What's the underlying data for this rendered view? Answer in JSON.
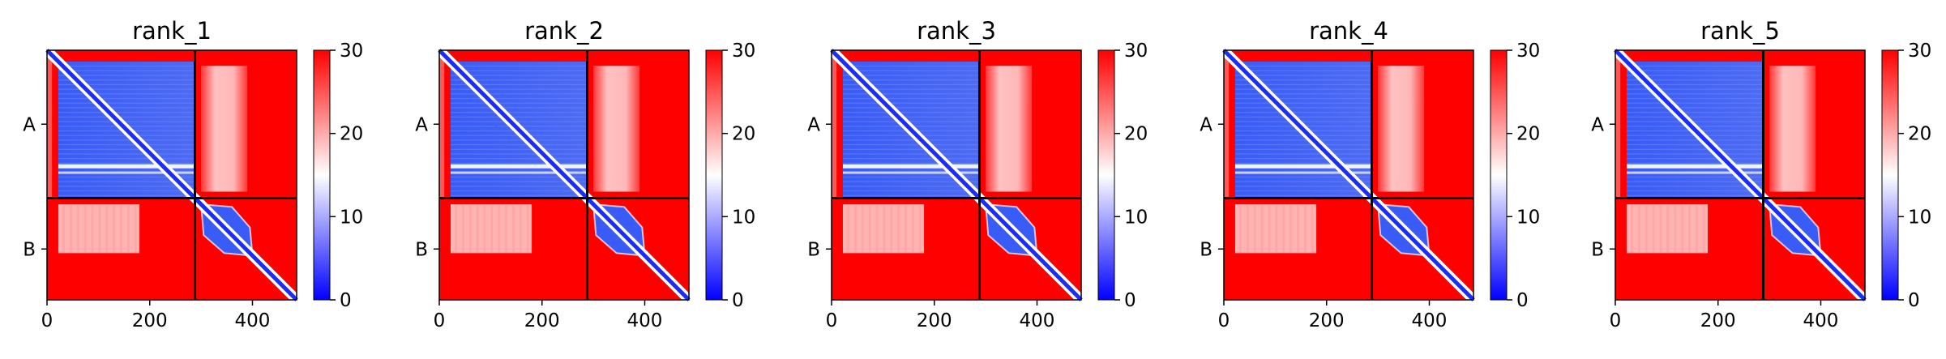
{
  "chart_data": [
    {
      "type": "heatmap",
      "title": "rank_1",
      "x_ticks": [
        0,
        200,
        400
      ],
      "x_range": [
        0,
        486
      ],
      "y_range": [
        0,
        486
      ],
      "chain_boundary": 288,
      "y_tick_labels": [
        "A",
        "B"
      ],
      "colorbar": {
        "min": 0,
        "max": 30,
        "ticks": [
          0,
          10,
          20,
          30
        ],
        "colormap": "bwr"
      }
    },
    {
      "type": "heatmap",
      "title": "rank_2",
      "x_ticks": [
        0,
        200,
        400
      ],
      "x_range": [
        0,
        486
      ],
      "y_range": [
        0,
        486
      ],
      "chain_boundary": 288,
      "y_tick_labels": [
        "A",
        "B"
      ],
      "colorbar": {
        "min": 0,
        "max": 30,
        "ticks": [
          0,
          10,
          20,
          30
        ],
        "colormap": "bwr"
      }
    },
    {
      "type": "heatmap",
      "title": "rank_3",
      "x_ticks": [
        0,
        200,
        400
      ],
      "x_range": [
        0,
        486
      ],
      "y_range": [
        0,
        486
      ],
      "chain_boundary": 288,
      "y_tick_labels": [
        "A",
        "B"
      ],
      "colorbar": {
        "min": 0,
        "max": 30,
        "ticks": [
          0,
          10,
          20,
          30
        ],
        "colormap": "bwr"
      }
    },
    {
      "type": "heatmap",
      "title": "rank_4",
      "x_ticks": [
        0,
        200,
        400
      ],
      "x_range": [
        0,
        486
      ],
      "y_range": [
        0,
        486
      ],
      "chain_boundary": 288,
      "y_tick_labels": [
        "A",
        "B"
      ],
      "colorbar": {
        "min": 0,
        "max": 30,
        "ticks": [
          0,
          10,
          20,
          30
        ],
        "colormap": "bwr"
      }
    },
    {
      "type": "heatmap",
      "title": "rank_5",
      "x_ticks": [
        0,
        200,
        400
      ],
      "x_range": [
        0,
        486
      ],
      "y_range": [
        0,
        486
      ],
      "chain_boundary": 288,
      "y_tick_labels": [
        "A",
        "B"
      ],
      "colorbar": {
        "min": 0,
        "max": 30,
        "ticks": [
          0,
          10,
          20,
          30
        ],
        "colormap": "bwr"
      }
    }
  ],
  "colors": {
    "high": "#ff0000",
    "mid": "#ffffff",
    "low": "#0000ff",
    "frame": "#000000"
  }
}
